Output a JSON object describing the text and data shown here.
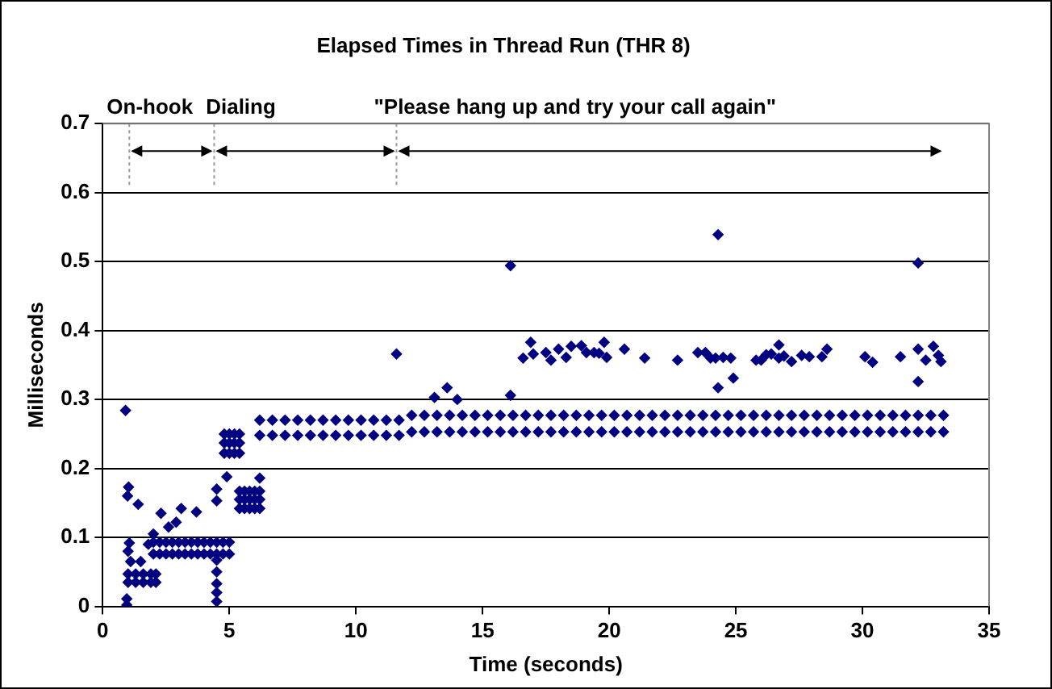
{
  "chart_data": {
    "type": "scatter",
    "title": "Elapsed Times in Thread Run (THR 8)",
    "xlabel": "Time (seconds)",
    "ylabel": "Milliseconds",
    "xlim": [
      0,
      35
    ],
    "xticks": [
      0,
      5,
      10,
      15,
      20,
      25,
      30,
      35
    ],
    "ylim": [
      0,
      0.7
    ],
    "yticks": [
      0,
      0.1,
      0.2,
      0.3,
      0.4,
      0.5,
      0.6,
      0.7
    ],
    "grid": "y",
    "legend": false,
    "marker": "diamond",
    "ref_lines": [
      {
        "axis": "x",
        "value": 1.05,
        "label": "On-hook",
        "color": "#999999",
        "line_style": "dotted"
      },
      {
        "axis": "x",
        "value": 4.4,
        "label": "Dialing",
        "color": "#999999",
        "line_style": "dotted"
      },
      {
        "axis": "x",
        "value": 11.6,
        "label": "\"Please hang up and try your call again\"",
        "color": "#999999",
        "line_style": "dotted"
      }
    ],
    "series": [
      {
        "color": "#000080",
        "x": [
          0.9,
          1.02,
          0.98,
          1.4,
          0.95,
          0.95,
          1.0,
          1.1,
          1.05,
          1.0,
          1.3,
          1.6,
          1.9,
          2.1,
          1.0,
          1.3,
          1.6,
          1.9,
          2.1,
          1.5,
          1.8,
          2.0,
          2.3,
          2.9,
          3.1,
          3.7,
          2.6,
          2.0,
          2.25,
          2.5,
          2.75,
          3.0,
          3.25,
          3.5,
          3.75,
          4.0,
          4.25,
          4.5,
          4.75,
          5.0,
          2.0,
          2.25,
          2.5,
          2.75,
          3.0,
          3.25,
          3.5,
          3.75,
          4.0,
          4.25,
          4.5,
          4.75,
          5.0,
          4.5,
          4.5,
          4.5,
          4.5,
          4.5,
          4.5,
          4.5,
          4.9,
          4.8,
          5.0,
          5.2,
          5.4,
          4.8,
          5.0,
          5.2,
          5.4,
          4.8,
          5.0,
          5.2,
          5.4,
          5.4,
          5.6,
          5.8,
          6.0,
          6.2,
          5.4,
          5.6,
          5.8,
          6.0,
          6.2,
          5.4,
          5.6,
          5.8,
          6.0,
          6.2,
          6.2,
          6.2,
          6.7,
          7.2,
          7.7,
          8.2,
          8.7,
          9.2,
          9.7,
          10.2,
          10.7,
          11.2,
          11.7,
          12.2,
          12.7,
          13.2,
          13.7,
          14.2,
          14.7,
          15.2,
          15.7,
          16.2,
          16.7,
          17.2,
          17.7,
          18.2,
          18.7,
          19.2,
          19.7,
          20.2,
          20.7,
          21.2,
          21.7,
          22.2,
          22.7,
          23.2,
          23.7,
          24.2,
          24.7,
          25.2,
          25.7,
          26.2,
          26.7,
          27.2,
          27.7,
          28.2,
          28.7,
          29.2,
          29.7,
          30.2,
          30.7,
          31.2,
          31.7,
          32.2,
          32.7,
          33.2,
          6.2,
          6.7,
          7.2,
          7.7,
          8.2,
          8.7,
          9.2,
          9.7,
          10.2,
          10.7,
          11.2,
          11.7,
          12.2,
          12.7,
          13.2,
          13.7,
          14.2,
          14.7,
          15.2,
          15.7,
          16.2,
          16.7,
          17.2,
          17.7,
          18.2,
          18.7,
          19.2,
          19.7,
          20.2,
          20.7,
          21.2,
          21.7,
          22.2,
          22.7,
          23.2,
          23.7,
          24.2,
          24.7,
          25.2,
          25.7,
          26.2,
          26.7,
          27.2,
          27.7,
          28.2,
          28.7,
          29.2,
          29.7,
          30.2,
          30.7,
          31.2,
          31.7,
          32.2,
          32.7,
          33.2,
          11.6,
          13.1,
          13.6,
          14.0,
          16.1,
          16.1,
          16.6,
          16.9,
          17.0,
          17.5,
          17.7,
          18.0,
          18.3,
          18.5,
          18.9,
          19.1,
          19.4,
          19.6,
          19.8,
          19.9,
          20.6,
          21.4,
          22.7,
          23.5,
          23.8,
          24.0,
          24.2,
          24.3,
          24.3,
          24.5,
          24.8,
          24.9,
          26.0,
          25.8,
          26.2,
          26.4,
          26.7,
          26.7,
          26.9,
          27.2,
          27.6,
          27.9,
          28.4,
          28.6,
          30.1,
          30.4,
          31.5,
          32.2,
          32.2,
          32.2,
          32.5,
          32.8,
          33.0,
          33.1
        ],
        "values": [
          0.284,
          0.173,
          0.16,
          0.148,
          0.011,
          0.002,
          0.08,
          0.065,
          0.092,
          0.035,
          0.035,
          0.035,
          0.035,
          0.035,
          0.047,
          0.047,
          0.047,
          0.047,
          0.047,
          0.065,
          0.09,
          0.105,
          0.135,
          0.122,
          0.142,
          0.137,
          0.115,
          0.076,
          0.076,
          0.076,
          0.076,
          0.076,
          0.076,
          0.076,
          0.076,
          0.076,
          0.076,
          0.076,
          0.076,
          0.076,
          0.093,
          0.093,
          0.093,
          0.093,
          0.093,
          0.093,
          0.093,
          0.093,
          0.093,
          0.093,
          0.093,
          0.093,
          0.093,
          0.007,
          0.02,
          0.033,
          0.05,
          0.067,
          0.153,
          0.17,
          0.188,
          0.222,
          0.222,
          0.222,
          0.222,
          0.237,
          0.237,
          0.237,
          0.237,
          0.25,
          0.25,
          0.25,
          0.25,
          0.142,
          0.142,
          0.142,
          0.142,
          0.142,
          0.155,
          0.155,
          0.155,
          0.155,
          0.155,
          0.167,
          0.167,
          0.167,
          0.167,
          0.167,
          0.186,
          0.248,
          0.248,
          0.248,
          0.248,
          0.248,
          0.248,
          0.248,
          0.248,
          0.248,
          0.248,
          0.248,
          0.248,
          0.253,
          0.253,
          0.253,
          0.253,
          0.253,
          0.253,
          0.253,
          0.253,
          0.253,
          0.253,
          0.253,
          0.253,
          0.253,
          0.253,
          0.253,
          0.253,
          0.253,
          0.253,
          0.253,
          0.253,
          0.253,
          0.253,
          0.253,
          0.253,
          0.253,
          0.253,
          0.253,
          0.253,
          0.253,
          0.253,
          0.253,
          0.253,
          0.253,
          0.253,
          0.253,
          0.253,
          0.253,
          0.253,
          0.253,
          0.253,
          0.253,
          0.253,
          0.253,
          0.27,
          0.27,
          0.27,
          0.27,
          0.27,
          0.27,
          0.27,
          0.27,
          0.27,
          0.27,
          0.27,
          0.27,
          0.277,
          0.277,
          0.277,
          0.277,
          0.277,
          0.277,
          0.277,
          0.277,
          0.277,
          0.277,
          0.277,
          0.277,
          0.277,
          0.277,
          0.277,
          0.277,
          0.277,
          0.277,
          0.277,
          0.277,
          0.277,
          0.277,
          0.277,
          0.277,
          0.277,
          0.277,
          0.277,
          0.277,
          0.277,
          0.277,
          0.277,
          0.277,
          0.277,
          0.277,
          0.277,
          0.277,
          0.277,
          0.277,
          0.277,
          0.277,
          0.277,
          0.277,
          0.277,
          0.366,
          0.303,
          0.317,
          0.3,
          0.494,
          0.306,
          0.36,
          0.383,
          0.366,
          0.368,
          0.357,
          0.373,
          0.361,
          0.377,
          0.378,
          0.368,
          0.368,
          0.367,
          0.383,
          0.361,
          0.373,
          0.36,
          0.357,
          0.368,
          0.368,
          0.36,
          0.36,
          0.317,
          0.539,
          0.361,
          0.36,
          0.331,
          0.357,
          0.357,
          0.365,
          0.366,
          0.379,
          0.36,
          0.363,
          0.355,
          0.364,
          0.362,
          0.362,
          0.373,
          0.362,
          0.354,
          0.362,
          0.498,
          0.373,
          0.326,
          0.357,
          0.377,
          0.364,
          0.355
        ]
      }
    ]
  }
}
